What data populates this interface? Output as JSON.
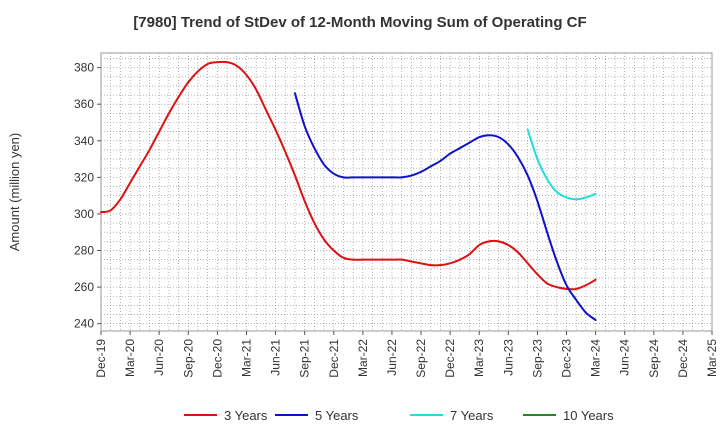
{
  "chart_data": {
    "type": "line",
    "title": "[7980]  Trend of StDev of 12-Month Moving Sum of Operating CF",
    "ylabel": "Amount (million yen)",
    "xlabel": "",
    "ylim": [
      236,
      388
    ],
    "yticks": [
      240,
      260,
      280,
      300,
      320,
      340,
      360,
      380
    ],
    "x_ticks": [
      "Dec-19",
      "Mar-20",
      "Jun-20",
      "Sep-20",
      "Dec-20",
      "Mar-21",
      "Jun-21",
      "Sep-21",
      "Dec-21",
      "Mar-22",
      "Jun-22",
      "Sep-22",
      "Dec-22",
      "Mar-23",
      "Jun-23",
      "Sep-23",
      "Dec-23",
      "Mar-24",
      "Jun-24",
      "Sep-24",
      "Dec-24",
      "Mar-25"
    ],
    "grid": true,
    "legend_position": "bottom",
    "series": [
      {
        "name": "3 Years",
        "color": "#dd1111",
        "x": [
          "Dec-19",
          "Jan-20",
          "Feb-20",
          "Mar-20",
          "Apr-20",
          "May-20",
          "Jun-20",
          "Jul-20",
          "Aug-20",
          "Sep-20",
          "Oct-20",
          "Nov-20",
          "Dec-20",
          "Jan-21",
          "Feb-21",
          "Mar-21",
          "Apr-21",
          "May-21",
          "Jun-21",
          "Jul-21",
          "Aug-21",
          "Sep-21",
          "Oct-21",
          "Nov-21",
          "Dec-21",
          "Jan-22",
          "Feb-22",
          "Mar-22",
          "Apr-22",
          "May-22",
          "Jun-22",
          "Jul-22",
          "Aug-22",
          "Sep-22",
          "Oct-22",
          "Nov-22",
          "Dec-22",
          "Jan-23",
          "Feb-23",
          "Mar-23",
          "Apr-23",
          "May-23",
          "Jun-23",
          "Jul-23",
          "Aug-23",
          "Sep-23",
          "Oct-23",
          "Nov-23",
          "Dec-23",
          "Jan-24",
          "Feb-24",
          "Mar-24"
        ],
        "values": [
          301,
          302,
          308,
          317,
          326,
          335,
          345,
          355,
          364,
          372,
          378,
          382,
          383,
          383,
          381,
          376,
          368,
          357,
          346,
          334,
          321,
          307,
          295,
          286,
          280,
          276,
          275,
          275,
          275,
          275,
          275,
          275,
          274,
          273,
          272,
          272,
          273,
          275,
          278,
          283,
          285,
          285,
          283,
          279,
          273,
          267,
          262,
          260,
          259,
          259,
          261,
          264
        ]
      },
      {
        "name": "5 Years",
        "color": "#1111cc",
        "x": [
          "Aug-21",
          "Sep-21",
          "Oct-21",
          "Nov-21",
          "Dec-21",
          "Jan-22",
          "Feb-22",
          "Mar-22",
          "Apr-22",
          "May-22",
          "Jun-22",
          "Jul-22",
          "Aug-22",
          "Sep-22",
          "Oct-22",
          "Nov-22",
          "Dec-22",
          "Jan-23",
          "Feb-23",
          "Mar-23",
          "Apr-23",
          "May-23",
          "Jun-23",
          "Jul-23",
          "Aug-23",
          "Sep-23",
          "Oct-23",
          "Nov-23",
          "Dec-23",
          "Jan-24",
          "Feb-24",
          "Mar-24"
        ],
        "values": [
          366,
          348,
          336,
          327,
          322,
          320,
          320,
          320,
          320,
          320,
          320,
          320,
          321,
          323,
          326,
          329,
          333,
          336,
          339,
          342,
          343,
          342,
          338,
          331,
          321,
          307,
          290,
          274,
          261,
          253,
          246,
          242
        ]
      },
      {
        "name": "7 Years",
        "color": "#22dddd",
        "x": [
          "Aug-23",
          "Sep-23",
          "Oct-23",
          "Nov-23",
          "Dec-23",
          "Jan-24",
          "Feb-24",
          "Mar-24"
        ],
        "values": [
          346,
          330,
          319,
          312,
          309,
          308,
          309,
          311
        ]
      },
      {
        "name": "10 Years",
        "color": "#228822",
        "x": [],
        "values": []
      }
    ]
  }
}
